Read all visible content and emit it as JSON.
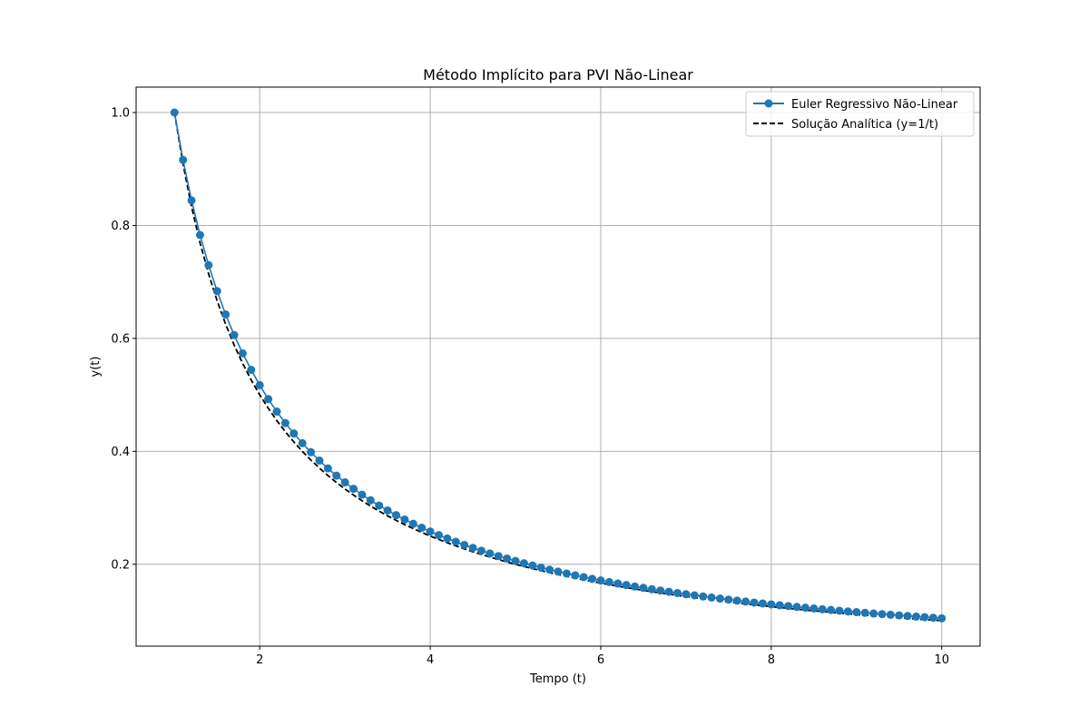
{
  "chart_data": {
    "type": "line",
    "title": "Método Implícito para PVI Não-Linear",
    "xlabel": "Tempo (t)",
    "ylabel": "y(t)",
    "xlim": [
      0.55,
      10.45
    ],
    "ylim": [
      0.055,
      1.045
    ],
    "xticks": [
      2,
      4,
      6,
      8,
      10
    ],
    "yticks": [
      0.2,
      0.4,
      0.6,
      0.8,
      1.0
    ],
    "xtick_labels": [
      "2",
      "4",
      "6",
      "8",
      "10"
    ],
    "ytick_labels": [
      "0.2",
      "0.4",
      "0.6",
      "0.8",
      "1.0"
    ],
    "grid": true,
    "legend_position": "upper right",
    "colors": {
      "euler": "#1f77b4",
      "analytic": "#000000",
      "grid": "#b0b0b0"
    },
    "x": [
      1.0,
      1.1,
      1.2,
      1.3,
      1.4,
      1.5,
      1.6,
      1.7,
      1.8,
      1.9,
      2.0,
      2.1,
      2.2,
      2.3,
      2.4,
      2.5,
      2.6,
      2.7,
      2.8,
      2.9,
      3.0,
      3.1,
      3.2,
      3.3,
      3.4,
      3.5,
      3.6,
      3.7,
      3.8,
      3.9,
      4.0,
      4.1,
      4.2,
      4.3,
      4.4,
      4.5,
      4.6,
      4.7,
      4.8,
      4.9,
      5.0,
      5.1,
      5.2,
      5.3,
      5.4,
      5.5,
      5.6,
      5.7,
      5.8,
      5.9,
      6.0,
      6.1,
      6.2,
      6.3,
      6.4,
      6.5,
      6.6,
      6.7,
      6.8,
      6.9,
      7.0,
      7.1,
      7.2,
      7.3,
      7.4,
      7.5,
      7.6,
      7.7,
      7.8,
      7.9,
      8.0,
      8.1,
      8.2,
      8.3,
      8.4,
      8.5,
      8.6,
      8.7,
      8.8,
      8.9,
      9.0,
      9.1,
      9.2,
      9.3,
      9.4,
      9.5,
      9.6,
      9.7,
      9.8,
      9.9,
      10.0
    ],
    "series": [
      {
        "name": "Euler Regressivo Não-Linear",
        "style": "solid-with-circle-markers",
        "values": [
          1.0,
          0.9161,
          0.8443,
          0.7831,
          0.7298,
          0.6838,
          0.6424,
          0.6059,
          0.5735,
          0.5443,
          0.5172,
          0.4925,
          0.4704,
          0.4501,
          0.4316,
          0.4144,
          0.3985,
          0.3836,
          0.3698,
          0.357,
          0.345,
          0.3337,
          0.3232,
          0.3133,
          0.304,
          0.2953,
          0.287,
          0.2792,
          0.2717,
          0.2647,
          0.258,
          0.2516,
          0.2456,
          0.2398,
          0.2343,
          0.229,
          0.224,
          0.2192,
          0.2145,
          0.2101,
          0.2059,
          0.2018,
          0.1979,
          0.1941,
          0.1905,
          0.187,
          0.1836,
          0.1804,
          0.1772,
          0.1742,
          0.1713,
          0.1685,
          0.1658,
          0.1632,
          0.1606,
          0.1582,
          0.1558,
          0.1535,
          0.1513,
          0.1491,
          0.147,
          0.145,
          0.143,
          0.1411,
          0.1392,
          0.1374,
          0.1356,
          0.1339,
          0.1322,
          0.1306,
          0.129,
          0.1275,
          0.126,
          0.1245,
          0.1231,
          0.1217,
          0.1203,
          0.119,
          0.1177,
          0.1164,
          0.1152,
          0.114,
          0.1128,
          0.1117,
          0.1106,
          0.1095,
          0.1084,
          0.1074,
          0.1063,
          0.1053,
          0.1043
        ]
      },
      {
        "name": "Solução Analítica (y=1/t)",
        "style": "dashed",
        "values": [
          1.0,
          0.9091,
          0.8333,
          0.7692,
          0.7143,
          0.6667,
          0.625,
          0.5882,
          0.5556,
          0.5263,
          0.5,
          0.4762,
          0.4545,
          0.4348,
          0.4167,
          0.4,
          0.3846,
          0.3704,
          0.3571,
          0.3448,
          0.3333,
          0.3226,
          0.3125,
          0.303,
          0.2941,
          0.2857,
          0.2778,
          0.2703,
          0.2632,
          0.2564,
          0.25,
          0.2439,
          0.2381,
          0.2326,
          0.2273,
          0.2222,
          0.2174,
          0.2128,
          0.2083,
          0.2041,
          0.2,
          0.1961,
          0.1923,
          0.1887,
          0.1852,
          0.1818,
          0.1786,
          0.1754,
          0.1724,
          0.1695,
          0.1667,
          0.1639,
          0.1613,
          0.1587,
          0.1563,
          0.1538,
          0.1515,
          0.1493,
          0.1471,
          0.1449,
          0.1429,
          0.1408,
          0.1389,
          0.137,
          0.1351,
          0.1333,
          0.1316,
          0.1299,
          0.1282,
          0.1266,
          0.125,
          0.1235,
          0.122,
          0.1205,
          0.119,
          0.1176,
          0.1163,
          0.1149,
          0.1136,
          0.1124,
          0.1111,
          0.1099,
          0.1087,
          0.1075,
          0.1064,
          0.1053,
          0.1042,
          0.1031,
          0.102,
          0.101,
          0.1
        ]
      }
    ]
  }
}
